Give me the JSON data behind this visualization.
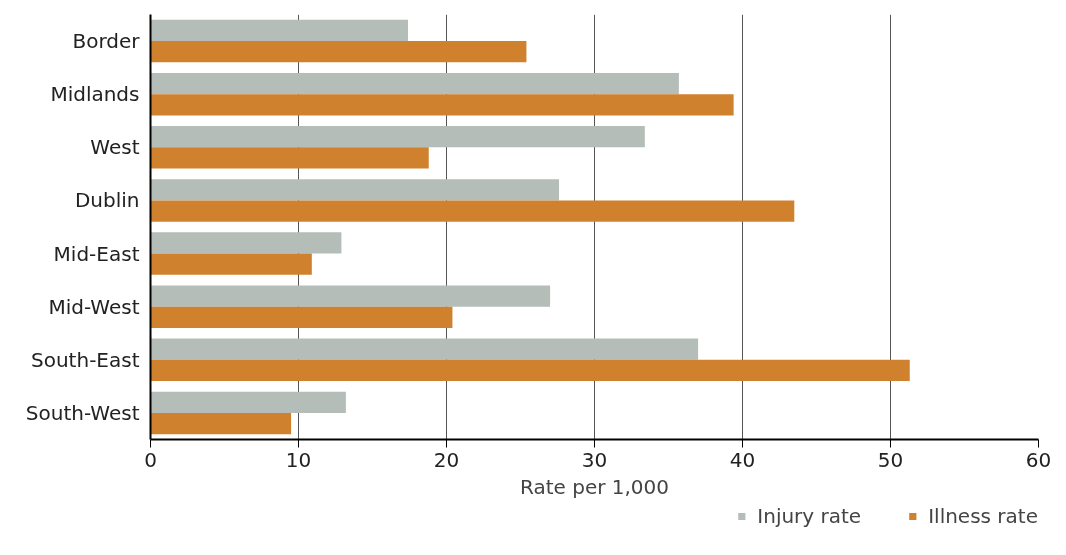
{
  "chart_data": {
    "type": "bar",
    "orientation": "horizontal",
    "xlabel": "Rate per 1,000",
    "categories": [
      "Border",
      "Midlands",
      "West",
      "Dublin",
      "Mid-East",
      "Mid-West",
      "South-East",
      "South-West"
    ],
    "series": [
      {
        "name": "Injury rate",
        "color": "#b4bdb8",
        "values": [
          17.4,
          35.7,
          33.4,
          27.6,
          12.9,
          27.0,
          37.0,
          13.2
        ]
      },
      {
        "name": "Illness rate",
        "color": "#d0812e",
        "values": [
          25.4,
          39.4,
          18.8,
          43.5,
          10.9,
          20.4,
          51.3,
          9.5
        ]
      }
    ],
    "xlim": [
      0,
      60
    ],
    "xticks": [
      0,
      10,
      20,
      30,
      40,
      50,
      60
    ],
    "grid": "x",
    "legend": "bottom right"
  }
}
